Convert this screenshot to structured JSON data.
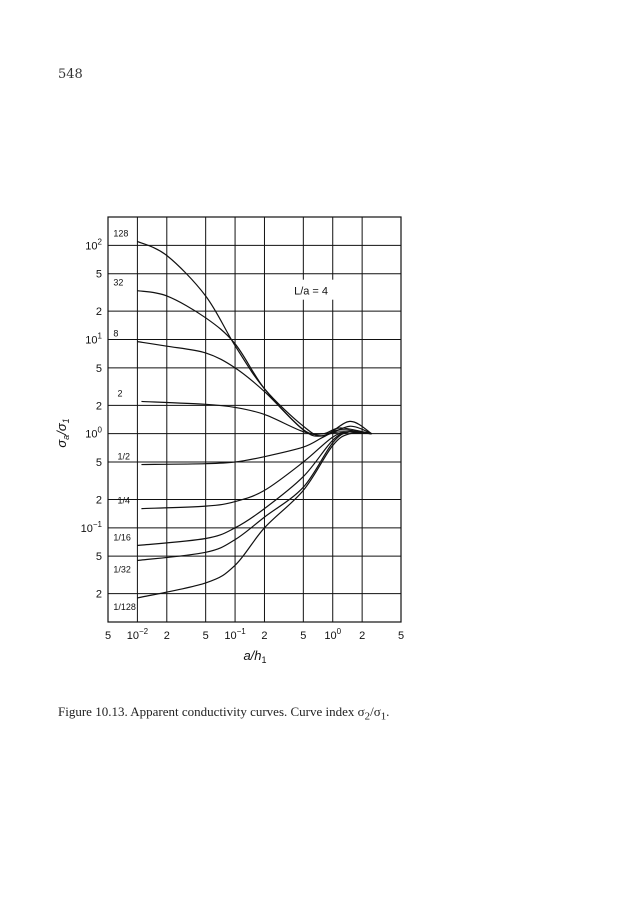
{
  "page_number": "548",
  "caption": {
    "text": "Figure 10.13. Apparent conductivity curves. Curve index σ",
    "sub1": "2",
    "slash": "/σ",
    "sub2": "1",
    "end": "."
  },
  "chart_data": {
    "type": "line",
    "title": "",
    "xlabel": "a/h",
    "xlabel_sub": "1",
    "ylabel": "σ",
    "ylabel_sub_a": "a",
    "ylabel_mid": "/σ",
    "ylabel_sub_b": "1",
    "xscale": "log",
    "yscale": "log",
    "xlim": [
      0.005,
      5
    ],
    "ylim": [
      0.01,
      200
    ],
    "grid": true,
    "x_ticks": [
      {
        "value": 0.005,
        "label": "5",
        "exp": ""
      },
      {
        "value": 0.01,
        "label": "10",
        "exp": "−2"
      },
      {
        "value": 0.02,
        "label": "2",
        "exp": ""
      },
      {
        "value": 0.05,
        "label": "5",
        "exp": ""
      },
      {
        "value": 0.1,
        "label": "10",
        "exp": "−1"
      },
      {
        "value": 0.2,
        "label": "2",
        "exp": ""
      },
      {
        "value": 0.5,
        "label": "5",
        "exp": ""
      },
      {
        "value": 1,
        "label": "10",
        "exp": "0"
      },
      {
        "value": 2,
        "label": "2",
        "exp": ""
      },
      {
        "value": 5,
        "label": "5",
        "exp": ""
      }
    ],
    "y_ticks": [
      {
        "value": 100,
        "label": "10",
        "exp": "2"
      },
      {
        "value": 50,
        "label": "5",
        "exp": ""
      },
      {
        "value": 20,
        "label": "2",
        "exp": ""
      },
      {
        "value": 10,
        "label": "10",
        "exp": "1"
      },
      {
        "value": 5,
        "label": "5",
        "exp": ""
      },
      {
        "value": 2,
        "label": "2",
        "exp": ""
      },
      {
        "value": 1,
        "label": "10",
        "exp": "0"
      },
      {
        "value": 0.5,
        "label": "5",
        "exp": ""
      },
      {
        "value": 0.2,
        "label": "2",
        "exp": ""
      },
      {
        "value": 0.1,
        "label": "10",
        "exp": "−1"
      },
      {
        "value": 0.05,
        "label": "5",
        "exp": ""
      },
      {
        "value": 0.02,
        "label": "2",
        "exp": ""
      }
    ],
    "annotations": [
      {
        "text": "L/a = 4",
        "x": 0.6,
        "y": 33
      }
    ],
    "legend": "curve labels at left end of each curve",
    "series": [
      {
        "name": "128",
        "x": [
          0.01,
          0.02,
          0.05,
          0.1,
          0.2,
          0.5,
          0.8,
          1.5,
          2.5
        ],
        "y": [
          110,
          78,
          29,
          8.6,
          3.0,
          1.2,
          0.95,
          1.35,
          1.0
        ]
      },
      {
        "name": "32",
        "x": [
          0.01,
          0.02,
          0.05,
          0.1,
          0.2,
          0.5,
          0.8,
          1.5,
          2.5
        ],
        "y": [
          33,
          29,
          17,
          9,
          3.0,
          1.1,
          0.95,
          1.2,
          1.0
        ]
      },
      {
        "name": "8",
        "x": [
          0.01,
          0.02,
          0.05,
          0.1,
          0.2,
          0.5,
          0.8,
          1.2,
          2.5
        ],
        "y": [
          9.5,
          8.5,
          7.2,
          5,
          2.8,
          1.1,
          1.0,
          1.15,
          1.0
        ]
      },
      {
        "name": "2",
        "x": [
          0.011,
          0.05,
          0.1,
          0.2,
          0.5,
          0.8,
          1.3,
          2.5
        ],
        "y": [
          2.2,
          2.05,
          1.9,
          1.6,
          1.05,
          1.0,
          1.05,
          1.0
        ]
      },
      {
        "name": "1/2",
        "x": [
          0.011,
          0.05,
          0.1,
          0.2,
          0.5,
          0.8,
          1.2,
          2.5
        ],
        "y": [
          0.47,
          0.48,
          0.5,
          0.57,
          0.72,
          0.92,
          1.1,
          1.0
        ]
      },
      {
        "name": "1/4",
        "x": [
          0.011,
          0.05,
          0.1,
          0.2,
          0.5,
          1.0,
          1.5,
          2.5
        ],
        "y": [
          0.16,
          0.17,
          0.19,
          0.25,
          0.5,
          0.92,
          1.05,
          1.0
        ]
      },
      {
        "name": "1/16",
        "x": [
          0.01,
          0.05,
          0.1,
          0.2,
          0.5,
          1.0,
          1.5,
          2.5
        ],
        "y": [
          0.065,
          0.077,
          0.1,
          0.16,
          0.35,
          0.85,
          1.05,
          1.0
        ]
      },
      {
        "name": "1/32",
        "x": [
          0.01,
          0.05,
          0.1,
          0.2,
          0.5,
          1.0,
          1.5,
          2.5
        ],
        "y": [
          0.045,
          0.055,
          0.075,
          0.13,
          0.27,
          0.8,
          1.05,
          1.0
        ]
      },
      {
        "name": "1/128",
        "x": [
          0.01,
          0.05,
          0.1,
          0.2,
          0.5,
          1.0,
          1.5,
          2.5
        ],
        "y": [
          0.018,
          0.026,
          0.04,
          0.1,
          0.25,
          0.75,
          1.0,
          1.0
        ]
      }
    ]
  }
}
